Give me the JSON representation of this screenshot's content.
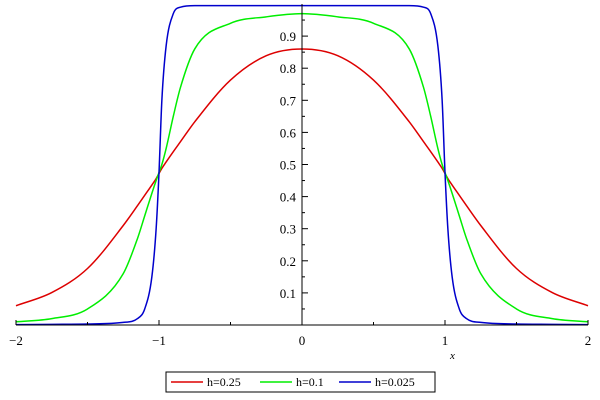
{
  "chart_data": {
    "type": "line",
    "title": "",
    "xlabel": "x",
    "ylabel": "",
    "xlim": [
      -2,
      2
    ],
    "ylim": [
      0,
      1
    ],
    "x_ticks": [
      {
        "value": -2,
        "label": "−2"
      },
      {
        "value": -1,
        "label": "−1"
      },
      {
        "value": 0,
        "label": "0"
      },
      {
        "value": 1,
        "label": "1"
      },
      {
        "value": 2,
        "label": "2"
      }
    ],
    "y_ticks": [
      {
        "value": 0.1,
        "label": "0.1"
      },
      {
        "value": 0.2,
        "label": "0.2"
      },
      {
        "value": 0.3,
        "label": "0.3"
      },
      {
        "value": 0.4,
        "label": "0.4"
      },
      {
        "value": 0.5,
        "label": "0.5"
      },
      {
        "value": 0.6,
        "label": "0.6"
      },
      {
        "value": 0.7,
        "label": "0.7"
      },
      {
        "value": 0.8,
        "label": "0.8"
      },
      {
        "value": 0.9,
        "label": "0.9"
      }
    ],
    "grid": false,
    "legend_position": "bottom",
    "x": [
      -2,
      -1.75,
      -1.5,
      -1.25,
      -1.15,
      -1.1,
      -1.05,
      -1.02,
      -1,
      -0.98,
      -0.95,
      -0.9,
      -0.85,
      -0.75,
      -0.5,
      -0.25,
      0,
      0.25,
      0.5,
      0.75,
      0.85,
      0.9,
      0.95,
      0.98,
      1,
      1.02,
      1.05,
      1.1,
      1.15,
      1.25,
      1.5,
      1.75,
      2
    ],
    "series": [
      {
        "name": "h=0.25",
        "color": "#dd0000",
        "values": [
          0.06,
          0.101,
          0.176,
          0.31,
          0.372,
          0.404,
          0.436,
          0.456,
          0.472,
          0.488,
          0.508,
          0.54,
          0.571,
          0.633,
          0.763,
          0.839,
          0.86,
          0.839,
          0.763,
          0.633,
          0.571,
          0.54,
          0.508,
          0.488,
          0.472,
          0.456,
          0.436,
          0.404,
          0.372,
          0.31,
          0.176,
          0.101,
          0.06
        ]
      },
      {
        "name": "h=0.1",
        "color": "#00ee00",
        "values": [
          0.01,
          0.02,
          0.05,
          0.16,
          0.27,
          0.34,
          0.41,
          0.45,
          0.475,
          0.5,
          0.55,
          0.65,
          0.74,
          0.86,
          0.94,
          0.96,
          0.97,
          0.96,
          0.94,
          0.86,
          0.74,
          0.65,
          0.55,
          0.5,
          0.475,
          0.45,
          0.41,
          0.34,
          0.27,
          0.16,
          0.05,
          0.02,
          0.01
        ]
      },
      {
        "name": "h=0.025",
        "color": "#0000cc",
        "values": [
          0.001,
          0.002,
          0.003,
          0.008,
          0.02,
          0.05,
          0.15,
          0.3,
          0.475,
          0.7,
          0.87,
          0.97,
          0.99,
          0.995,
          0.995,
          0.995,
          0.995,
          0.995,
          0.995,
          0.995,
          0.99,
          0.97,
          0.87,
          0.7,
          0.475,
          0.3,
          0.15,
          0.05,
          0.02,
          0.008,
          0.003,
          0.002,
          0.001
        ]
      }
    ]
  }
}
